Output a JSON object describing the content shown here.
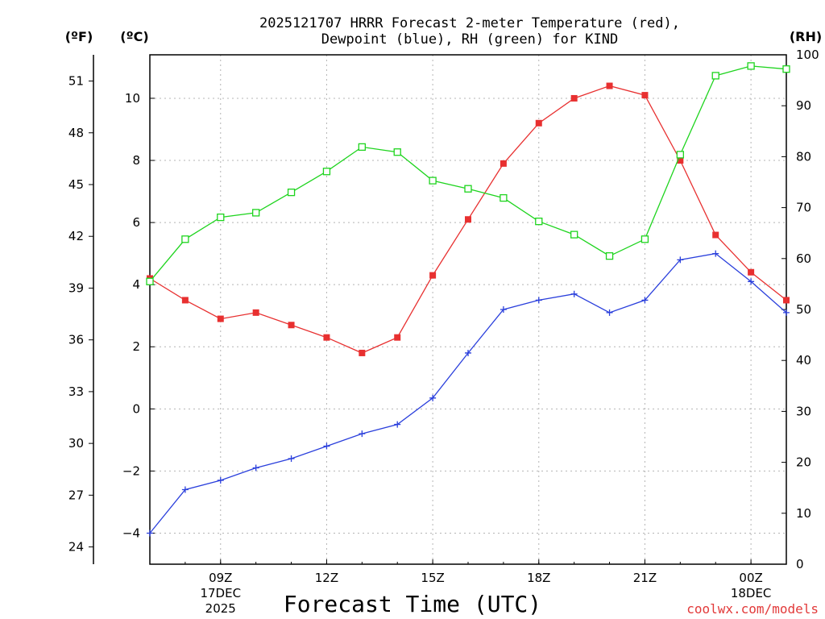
{
  "chart_data": {
    "type": "line",
    "title_line1": "2025121707 HRRR Forecast 2-meter Temperature (red),",
    "title_line2": "Dewpoint (blue), RH (green) for KIND",
    "xlabel": "Forecast Time (UTC)",
    "credit": "coolwx.com/models",
    "unit_f": "(ºF)",
    "unit_c": "(ºC)",
    "unit_rh": "(RH)",
    "x_hours": [
      7,
      8,
      9,
      10,
      11,
      12,
      13,
      14,
      15,
      16,
      17,
      18,
      19,
      20,
      21,
      22,
      23,
      24,
      25
    ],
    "xlim": [
      7,
      25
    ],
    "x_ticks": [
      {
        "hour": 9,
        "line1": "09Z",
        "line2": "17DEC",
        "line3": "2025"
      },
      {
        "hour": 12,
        "line1": "12Z",
        "line2": "",
        "line3": ""
      },
      {
        "hour": 15,
        "line1": "15Z",
        "line2": "",
        "line3": ""
      },
      {
        "hour": 18,
        "line1": "18Z",
        "line2": "",
        "line3": ""
      },
      {
        "hour": 21,
        "line1": "21Z",
        "line2": "",
        "line3": ""
      },
      {
        "hour": 24,
        "line1": "00Z",
        "line2": "18DEC",
        "line3": ""
      }
    ],
    "ylim_c": [
      -5,
      11.4
    ],
    "yticks_c": [
      -4,
      -2,
      0,
      2,
      4,
      6,
      8,
      10
    ],
    "yticks_f": [
      24,
      27,
      30,
      33,
      36,
      39,
      42,
      45,
      48,
      51
    ],
    "ylim_rh": [
      0,
      100
    ],
    "yticks_rh": [
      0,
      10,
      20,
      30,
      40,
      50,
      60,
      70,
      80,
      90,
      100
    ],
    "grid": true,
    "series": [
      {
        "name": "Temperature",
        "axis": "c",
        "color": "#e83030",
        "marker": "filled-square",
        "values": [
          4.2,
          3.5,
          2.9,
          3.1,
          2.7,
          2.3,
          1.8,
          2.3,
          4.3,
          6.1,
          7.9,
          9.2,
          10.0,
          10.4,
          10.1,
          8.0,
          5.6,
          4.4,
          3.5
        ]
      },
      {
        "name": "Dewpoint",
        "axis": "c",
        "color": "#2a3fdc",
        "marker": "plus",
        "values": [
          -4.0,
          -2.6,
          -2.3,
          -1.9,
          -1.6,
          -1.2,
          -0.8,
          -0.5,
          0.35,
          1.8,
          3.2,
          3.5,
          3.7,
          3.1,
          3.5,
          4.8,
          5.0,
          4.1,
          3.1
        ]
      },
      {
        "name": "Relative Humidity",
        "axis": "rh",
        "color": "#1ed41e",
        "marker": "open-square",
        "values": [
          55.5,
          63.8,
          68.1,
          69.0,
          73.0,
          77.1,
          81.9,
          80.9,
          75.3,
          73.7,
          71.9,
          67.3,
          64.7,
          60.5,
          63.8,
          80.4,
          95.9,
          97.8,
          97.2
        ]
      }
    ]
  }
}
